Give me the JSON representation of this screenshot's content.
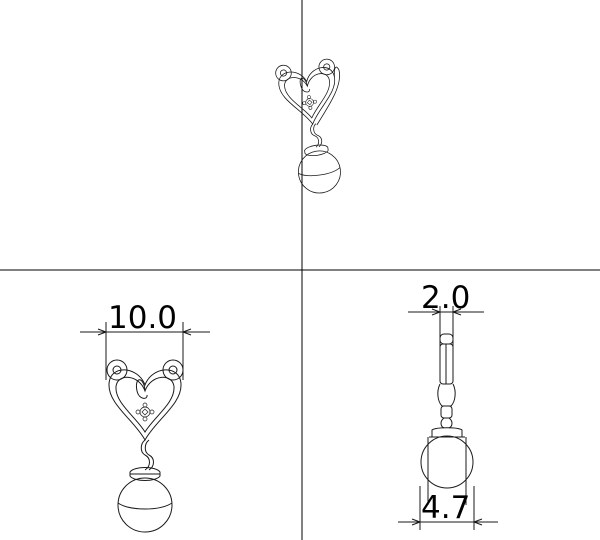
{
  "views": {
    "empty": "",
    "perspective": "",
    "front": "",
    "side": ""
  },
  "dimensions": {
    "front_width": "10.0",
    "side_thickness": "2.0",
    "side_pearl": "4.7"
  },
  "colors": {
    "line": "#1a1a1a",
    "background": "#ffffff"
  }
}
